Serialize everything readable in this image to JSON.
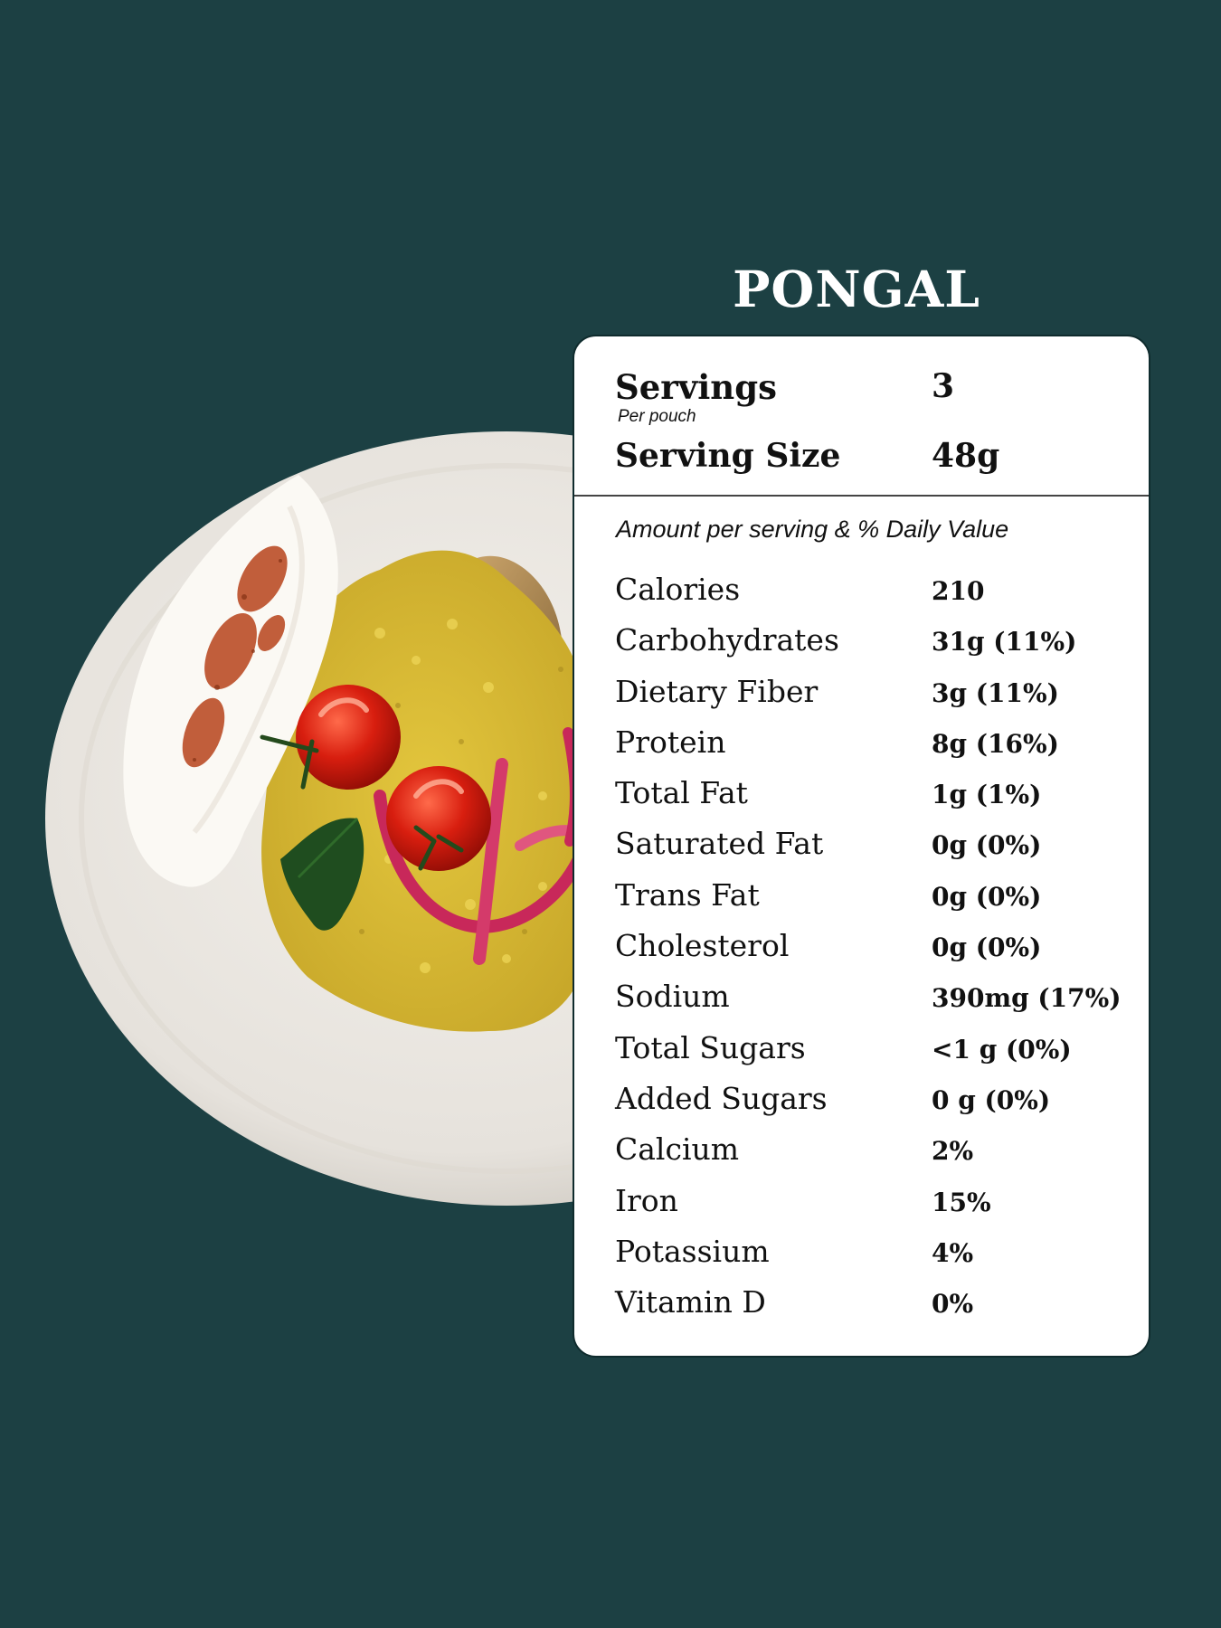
{
  "page": {
    "title": "PONGAL",
    "background_color": "#1c4043"
  },
  "photo": {
    "description_icon": "plate-of-pongal-icon"
  },
  "label": {
    "servings_label": "Servings",
    "servings_sub": "Per pouch",
    "servings_value": "3",
    "serving_size_label": "Serving Size",
    "serving_size_value": "48g",
    "amount_caption": "Amount per serving & % Daily Value",
    "nutrients": [
      {
        "name": "Calories",
        "value": "210"
      },
      {
        "name": "Carbohydrates",
        "value": "31g (11%)"
      },
      {
        "name": "Dietary Fiber",
        "value": "3g (11%)"
      },
      {
        "name": "Protein",
        "value": "8g (16%)"
      },
      {
        "name": "Total Fat",
        "value": "1g (1%)"
      },
      {
        "name": "Saturated Fat",
        "value": "0g (0%)"
      },
      {
        "name": "Trans Fat",
        "value": "0g (0%)"
      },
      {
        "name": "Cholesterol",
        "value": "0g (0%)"
      },
      {
        "name": "Sodium",
        "value": "390mg (17%)"
      },
      {
        "name": "Total Sugars",
        "value": "<1 g (0%)"
      },
      {
        "name": "Added Sugars",
        "value": "0 g (0%)"
      },
      {
        "name": "Calcium",
        "value": "2%"
      },
      {
        "name": "Iron",
        "value": "15%"
      },
      {
        "name": "Potassium",
        "value": "4%"
      },
      {
        "name": "Vitamin D",
        "value": "0%"
      }
    ]
  }
}
